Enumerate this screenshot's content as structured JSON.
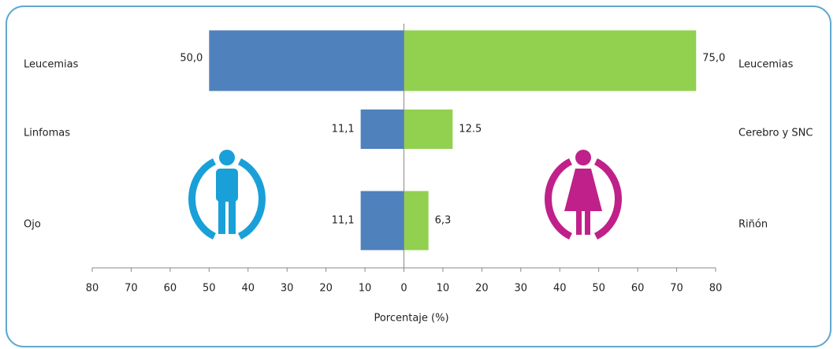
{
  "chart_data": {
    "type": "butterfly",
    "xlabel": "Porcentaje  (%)",
    "xlim": [
      -80,
      80
    ],
    "xticks": [
      {
        "value": -80,
        "label": "80"
      },
      {
        "value": -70,
        "label": "70"
      },
      {
        "value": -60,
        "label": "60"
      },
      {
        "value": -50,
        "label": "50"
      },
      {
        "value": -40,
        "label": "40"
      },
      {
        "value": -30,
        "label": "30"
      },
      {
        "value": -20,
        "label": "20"
      },
      {
        "value": -10,
        "label": "10"
      },
      0,
      10,
      20,
      30,
      40,
      50,
      60,
      70,
      80
    ],
    "series": [
      {
        "side": "left",
        "color": "#4f81bd",
        "categories": [
          "Leucemias",
          "Linfomas",
          "Ojo"
        ],
        "values": [
          50.0,
          11.1,
          11.1
        ],
        "value_labels": [
          "50,0",
          "11,1",
          "11,1"
        ]
      },
      {
        "side": "right",
        "color": "#92d050",
        "categories": [
          "Leucemias",
          "Cerebro y SNC",
          "Riñón"
        ],
        "values": [
          75.0,
          12.5,
          6.3
        ],
        "value_labels": [
          "75,0",
          "12.5",
          "6,3"
        ]
      }
    ]
  }
}
